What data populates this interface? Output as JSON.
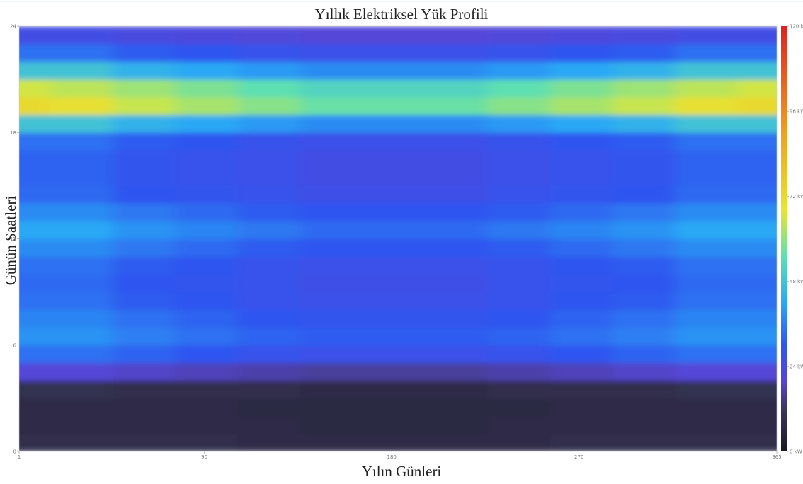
{
  "chart_data": {
    "type": "heatmap",
    "title": "Yıllık Elektriksel Yük Profili",
    "xlabel": "Yılın Günleri",
    "ylabel": "Günün Saatleri",
    "x": [
      1,
      31,
      61,
      91,
      121,
      151,
      181,
      211,
      241,
      271,
      301,
      331,
      361
    ],
    "y": [
      0,
      1,
      2,
      3,
      4,
      5,
      6,
      7,
      8,
      9,
      10,
      11,
      12,
      13,
      14,
      15,
      16,
      17,
      18,
      19,
      20,
      21,
      22,
      23
    ],
    "z": [
      [
        8,
        8,
        8,
        8,
        7,
        7,
        7,
        7,
        7,
        8,
        8,
        8,
        8
      ],
      [
        7,
        7,
        7,
        7,
        7,
        6,
        6,
        6,
        7,
        7,
        7,
        7,
        7
      ],
      [
        7,
        7,
        7,
        7,
        6,
        6,
        6,
        6,
        6,
        7,
        7,
        7,
        7
      ],
      [
        9,
        9,
        8,
        8,
        8,
        7,
        7,
        7,
        8,
        8,
        8,
        9,
        9
      ],
      [
        20,
        20,
        19,
        18,
        17,
        16,
        16,
        16,
        17,
        18,
        19,
        20,
        20
      ],
      [
        34,
        34,
        32,
        30,
        28,
        27,
        27,
        27,
        28,
        30,
        32,
        34,
        34
      ],
      [
        39,
        39,
        36,
        34,
        32,
        31,
        31,
        31,
        32,
        34,
        36,
        39,
        39
      ],
      [
        37,
        37,
        34,
        32,
        30,
        29,
        29,
        29,
        30,
        32,
        34,
        37,
        37
      ],
      [
        34,
        34,
        31,
        30,
        28,
        27,
        27,
        27,
        28,
        30,
        31,
        34,
        34
      ],
      [
        33,
        33,
        30,
        29,
        28,
        26,
        26,
        26,
        28,
        29,
        30,
        33,
        33
      ],
      [
        34,
        34,
        31,
        30,
        28,
        27,
        27,
        27,
        28,
        30,
        31,
        34,
        34
      ],
      [
        38,
        38,
        35,
        33,
        31,
        30,
        30,
        30,
        31,
        33,
        35,
        38,
        38
      ],
      [
        42,
        42,
        39,
        37,
        35,
        33,
        33,
        33,
        35,
        37,
        39,
        42,
        42
      ],
      [
        38,
        38,
        35,
        33,
        31,
        30,
        30,
        30,
        31,
        33,
        35,
        38,
        38
      ],
      [
        33,
        33,
        30,
        29,
        28,
        26,
        26,
        26,
        28,
        29,
        30,
        33,
        33
      ],
      [
        32,
        32,
        29,
        28,
        27,
        25,
        25,
        25,
        27,
        28,
        29,
        32,
        32
      ],
      [
        32,
        32,
        29,
        28,
        27,
        25,
        25,
        25,
        27,
        28,
        29,
        32,
        32
      ],
      [
        34,
        34,
        31,
        30,
        28,
        27,
        27,
        27,
        28,
        30,
        31,
        34,
        34
      ],
      [
        48,
        48,
        44,
        42,
        40,
        38,
        38,
        38,
        40,
        42,
        44,
        48,
        48
      ],
      [
        72,
        70,
        65,
        62,
        59,
        56,
        56,
        56,
        59,
        62,
        65,
        70,
        72
      ],
      [
        66,
        64,
        61,
        58,
        55,
        52,
        52,
        52,
        55,
        58,
        61,
        64,
        66
      ],
      [
        48,
        48,
        44,
        42,
        40,
        38,
        38,
        38,
        40,
        42,
        44,
        48,
        48
      ],
      [
        34,
        34,
        31,
        30,
        28,
        27,
        27,
        27,
        28,
        30,
        31,
        34,
        34
      ],
      [
        25,
        25,
        23,
        22,
        21,
        20,
        20,
        20,
        21,
        22,
        23,
        25,
        25
      ]
    ],
    "xlim": [
      1,
      365
    ],
    "xticks": [
      1,
      90,
      180,
      270,
      365
    ],
    "ylim": [
      0,
      24
    ],
    "yticks": [
      0,
      6,
      12,
      18,
      24
    ],
    "clim": [
      0,
      120
    ],
    "cticks": [
      {
        "value": 0,
        "label": "0 kW"
      },
      {
        "value": 24,
        "label": "24 kW"
      },
      {
        "value": 48,
        "label": "48 kW"
      },
      {
        "value": 72,
        "label": "72 kW"
      },
      {
        "value": 96,
        "label": "96 kW"
      },
      {
        "value": 120,
        "label": "120 kW"
      }
    ],
    "colorscale": [
      [
        0,
        "#1a1a24"
      ],
      [
        12,
        "#3b3760"
      ],
      [
        20,
        "#5546d8"
      ],
      [
        30,
        "#2f55f0"
      ],
      [
        42,
        "#2aa8f5"
      ],
      [
        55,
        "#5ee0b0"
      ],
      [
        68,
        "#e6e632"
      ],
      [
        90,
        "#f0a020"
      ],
      [
        120,
        "#e02020"
      ]
    ]
  }
}
